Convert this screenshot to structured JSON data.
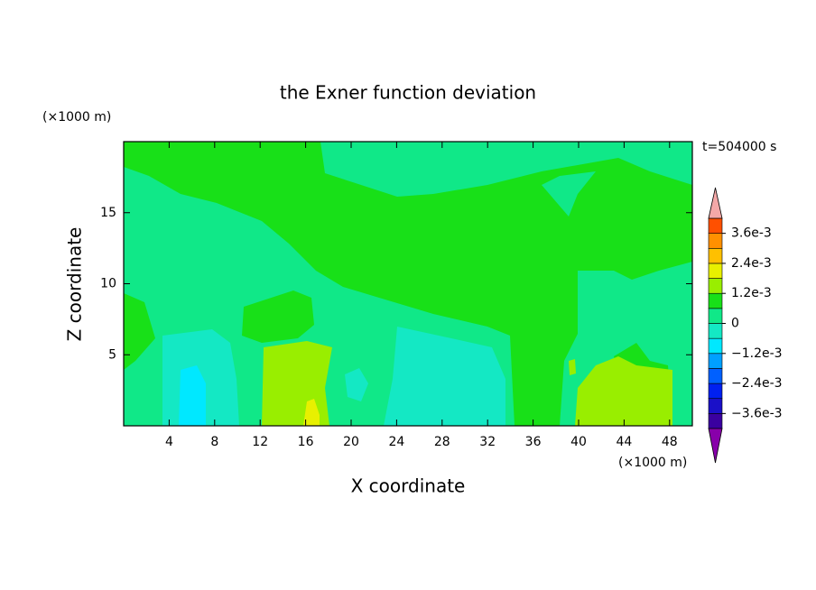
{
  "chart_data": {
    "type": "contour",
    "title": "the Exner function deviation",
    "xlabel": "X coordinate",
    "ylabel": "Z coordinate",
    "x_unit": "(×1000 m)",
    "y_unit": "(×1000 m)",
    "time_label": "t=504000 s",
    "xlim": [
      0,
      50
    ],
    "ylim": [
      0,
      20
    ],
    "xticks": [
      4,
      8,
      12,
      16,
      20,
      24,
      28,
      32,
      36,
      40,
      44,
      48
    ],
    "yticks": [
      5,
      10,
      15
    ],
    "colorbar": {
      "levels": [
        -0.0042,
        -0.0036,
        -0.003,
        -0.0024,
        -0.0018,
        -0.0012,
        -0.0006,
        0,
        0.0006,
        0.0012,
        0.0018,
        0.0024,
        0.003,
        0.0036,
        0.0042
      ],
      "colors": [
        "#3a00a0",
        "#1a10c8",
        "#0020f0",
        "#0060ff",
        "#00a0ff",
        "#00e8ff",
        "#14e8c4",
        "#10e888",
        "#18e018",
        "#99ee00",
        "#e8f000",
        "#ffc000",
        "#ff9000",
        "#ff5000",
        "#ff2020"
      ],
      "under_color": "#8800aa",
      "over_color": "#f4a8a8",
      "ticks": [
        {
          "value": 0.0036,
          "label": "3.6e-3"
        },
        {
          "value": 0.0024,
          "label": "2.4e-3"
        },
        {
          "value": 0.0012,
          "label": "1.2e-3"
        },
        0,
        {
          "value": -0.0012,
          "label": "−1.2e-3"
        },
        {
          "value": -0.0024,
          "label": "−2.4e-3"
        },
        {
          "value": -0.0036,
          "label": "−3.6e-3"
        }
      ]
    }
  }
}
